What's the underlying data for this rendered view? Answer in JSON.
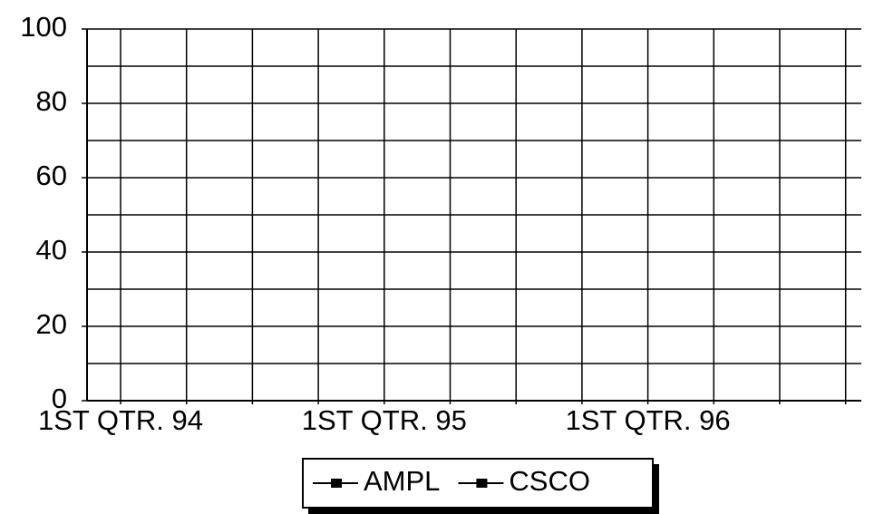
{
  "chart_data": {
    "type": "line",
    "categories": [
      "1ST QTR. 94",
      null,
      null,
      null,
      "1ST QTR. 95",
      null,
      null,
      null,
      "1ST QTR. 96",
      null,
      null,
      null
    ],
    "series": [
      {
        "name": "AMPL",
        "color": "#000000",
        "values": [
          null,
          null,
          null,
          null,
          null,
          null,
          null,
          null,
          null,
          null,
          null,
          null
        ]
      },
      {
        "name": "CSCO",
        "color": "#000000",
        "values": [
          null,
          null,
          null,
          null,
          null,
          null,
          null,
          null,
          null,
          null,
          null,
          null
        ]
      }
    ],
    "ylim": [
      0,
      100
    ],
    "yticks": [
      0,
      20,
      40,
      60,
      80,
      100
    ],
    "yminor_ticks": [
      10,
      30,
      50,
      70,
      90
    ],
    "grid": true
  }
}
